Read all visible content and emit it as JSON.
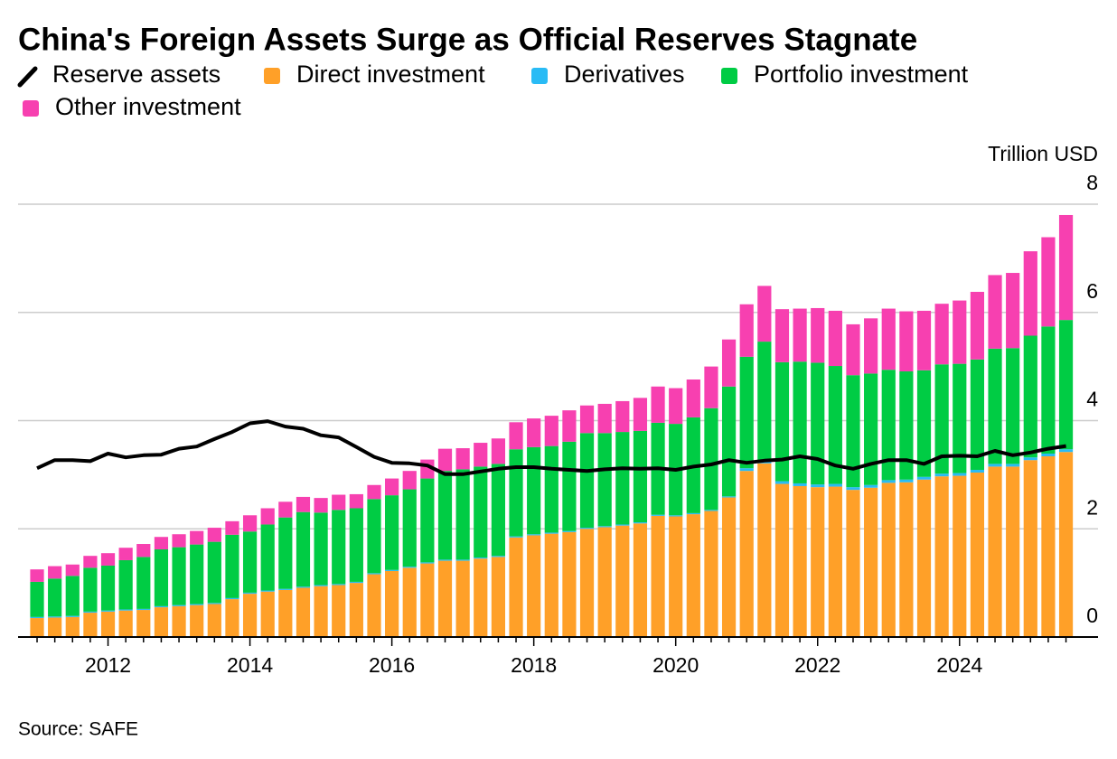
{
  "chart_data": {
    "type": "bar",
    "stacked": true,
    "title": "China's Foreign Assets Surge as Official Reserves Stagnate",
    "y_label": "Trillion USD",
    "source": "Source: SAFE",
    "categories": [
      null,
      null,
      null,
      null,
      "2012",
      null,
      null,
      null,
      null,
      null,
      null,
      null,
      "2014",
      null,
      null,
      null,
      null,
      null,
      null,
      null,
      "2016",
      null,
      null,
      null,
      null,
      null,
      null,
      null,
      "2018",
      null,
      null,
      null,
      null,
      null,
      null,
      null,
      "2020",
      null,
      null,
      null,
      null,
      null,
      null,
      null,
      "2022",
      null,
      null,
      null,
      null,
      null,
      null,
      null,
      "2024",
      null,
      null,
      null,
      null,
      null,
      null
    ],
    "ylim": [
      0,
      8
    ],
    "yticks": [
      0,
      2,
      4,
      6,
      8
    ],
    "grid": true,
    "series": [
      {
        "name": "Reserve assets",
        "type": "line",
        "color": "#000000",
        "values": [
          3.12,
          3.27,
          3.27,
          3.25,
          3.39,
          3.32,
          3.36,
          3.37,
          3.48,
          3.52,
          3.66,
          3.79,
          3.95,
          3.99,
          3.89,
          3.85,
          3.73,
          3.69,
          3.51,
          3.33,
          3.22,
          3.21,
          3.17,
          3.01,
          3.01,
          3.06,
          3.11,
          3.14,
          3.14,
          3.11,
          3.09,
          3.07,
          3.1,
          3.12,
          3.11,
          3.12,
          3.09,
          3.15,
          3.19,
          3.27,
          3.22,
          3.26,
          3.28,
          3.34,
          3.29,
          3.17,
          3.11,
          3.2,
          3.27,
          3.27,
          3.2,
          3.34,
          3.35,
          3.34,
          3.44,
          3.36,
          3.41,
          3.48,
          3.53
        ]
      },
      {
        "name": "Direct investment",
        "type": "bar",
        "color": "#ffa028",
        "values": [
          0.35,
          0.36,
          0.37,
          0.45,
          0.47,
          0.49,
          0.5,
          0.55,
          0.57,
          0.59,
          0.61,
          0.7,
          0.8,
          0.84,
          0.87,
          0.91,
          0.94,
          0.96,
          1.0,
          1.16,
          1.22,
          1.28,
          1.36,
          1.41,
          1.41,
          1.45,
          1.48,
          1.84,
          1.88,
          1.91,
          1.94,
          2.0,
          2.03,
          2.06,
          2.1,
          2.24,
          2.23,
          2.27,
          2.33,
          2.58,
          3.07,
          3.21,
          2.83,
          2.79,
          2.77,
          2.78,
          2.72,
          2.76,
          2.85,
          2.86,
          2.91,
          2.97,
          2.98,
          3.04,
          3.15,
          3.15,
          3.27,
          3.34,
          3.42
        ]
      },
      {
        "name": "Derivatives",
        "type": "bar",
        "color": "#29bbf5",
        "values": [
          0.02,
          0.02,
          0.02,
          0.02,
          0.02,
          0.02,
          0.02,
          0.02,
          0.02,
          0.02,
          0.02,
          0.02,
          0.02,
          0.02,
          0.02,
          0.02,
          0.02,
          0.02,
          0.02,
          0.02,
          0.02,
          0.02,
          0.02,
          0.02,
          0.02,
          0.02,
          0.02,
          0.02,
          0.02,
          0.02,
          0.02,
          0.02,
          0.02,
          0.02,
          0.02,
          0.02,
          0.02,
          0.02,
          0.02,
          0.02,
          0.05,
          0.05,
          0.05,
          0.05,
          0.05,
          0.05,
          0.05,
          0.05,
          0.05,
          0.05,
          0.05,
          0.05,
          0.05,
          0.05,
          0.05,
          0.05,
          0.05,
          0.05,
          0.05
        ]
      },
      {
        "name": "Portfolio investment",
        "type": "bar",
        "color": "#00cc44",
        "values": [
          0.65,
          0.7,
          0.74,
          0.81,
          0.83,
          0.91,
          0.96,
          1.05,
          1.07,
          1.1,
          1.13,
          1.17,
          1.13,
          1.22,
          1.32,
          1.38,
          1.34,
          1.37,
          1.36,
          1.37,
          1.38,
          1.43,
          1.55,
          1.64,
          1.67,
          1.68,
          1.7,
          1.61,
          1.61,
          1.6,
          1.65,
          1.75,
          1.72,
          1.71,
          1.69,
          1.7,
          1.69,
          1.77,
          1.88,
          2.03,
          2.06,
          2.2,
          2.2,
          2.25,
          2.25,
          2.18,
          2.07,
          2.06,
          2.04,
          2.0,
          1.97,
          2.02,
          2.02,
          2.04,
          2.13,
          2.14,
          2.25,
          2.35,
          2.39
        ]
      },
      {
        "name": "Other investment",
        "type": "bar",
        "color": "#f740b0",
        "values": [
          0.23,
          0.23,
          0.21,
          0.22,
          0.23,
          0.23,
          0.24,
          0.23,
          0.24,
          0.25,
          0.26,
          0.25,
          0.3,
          0.3,
          0.29,
          0.28,
          0.27,
          0.28,
          0.26,
          0.26,
          0.31,
          0.34,
          0.35,
          0.41,
          0.39,
          0.44,
          0.47,
          0.5,
          0.53,
          0.56,
          0.58,
          0.51,
          0.54,
          0.57,
          0.61,
          0.67,
          0.66,
          0.7,
          0.77,
          0.87,
          0.97,
          1.03,
          0.98,
          0.98,
          1.01,
          1.02,
          0.94,
          1.02,
          1.13,
          1.11,
          1.1,
          1.12,
          1.17,
          1.25,
          1.36,
          1.39,
          1.56,
          1.65,
          1.94
        ]
      }
    ]
  }
}
